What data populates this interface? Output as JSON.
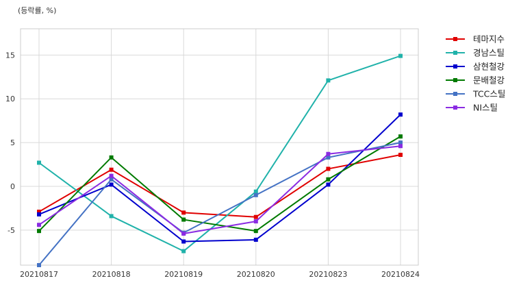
{
  "chart_data": {
    "type": "line",
    "unit_label": "(등락률, %)",
    "categories": [
      "20210817",
      "20210818",
      "20210819",
      "20210820",
      "20210823",
      "20210824"
    ],
    "ylim": [
      -9,
      18
    ],
    "yticks": [
      -5,
      0,
      5,
      10,
      15
    ],
    "grid": true,
    "legend_position": "right",
    "series": [
      {
        "name": "테마지수",
        "color": "#e00000",
        "values": [
          -2.9,
          1.9,
          -3.0,
          -3.5,
          2.0,
          3.6
        ]
      },
      {
        "name": "경남스틸",
        "color": "#20b2aa",
        "values": [
          2.7,
          -3.4,
          -7.4,
          -0.6,
          12.1,
          14.9
        ]
      },
      {
        "name": "삼현철강",
        "color": "#0000cd",
        "values": [
          -3.2,
          0.2,
          -6.3,
          -6.1,
          0.2,
          8.2
        ]
      },
      {
        "name": "문배철강",
        "color": "#007a00",
        "values": [
          -5.1,
          3.3,
          -3.8,
          -5.1,
          0.8,
          5.7
        ]
      },
      {
        "name": "TCC스틸",
        "color": "#4472c4",
        "values": [
          -9.0,
          0.8,
          -5.3,
          -1.0,
          3.3,
          5.0
        ]
      },
      {
        "name": "NI스틸",
        "color": "#8a2be2",
        "values": [
          -4.4,
          1.2,
          -5.4,
          -4.0,
          3.7,
          4.6
        ]
      }
    ]
  }
}
